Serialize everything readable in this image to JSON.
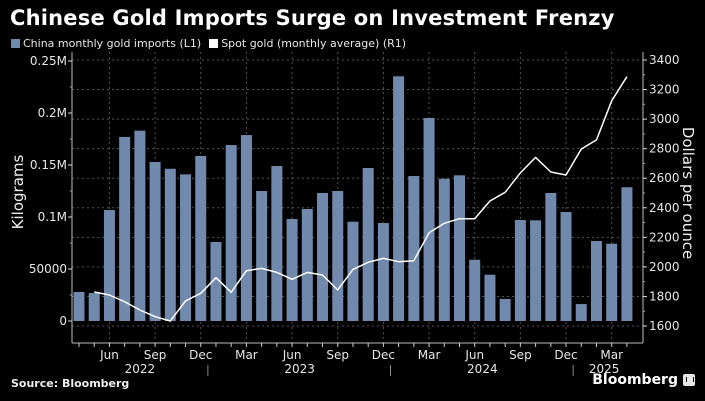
{
  "chart_data": {
    "type": "bar",
    "title": "Chinese Gold Imports Surge on Investment Frenzy",
    "source": "Source: Bloomberg",
    "brand": "Bloomberg",
    "legend_position": "top-left",
    "grid": true,
    "colors": {
      "bars": "#7189ad",
      "line": "#ffffff",
      "background": "#000000",
      "grid": "#555555"
    },
    "categories": [
      "Apr 2022",
      "May 2022",
      "Jun 2022",
      "Jul 2022",
      "Aug 2022",
      "Sep 2022",
      "Oct 2022",
      "Nov 2022",
      "Dec 2022",
      "Jan 2023",
      "Feb 2023",
      "Mar 2023",
      "Apr 2023",
      "May 2023",
      "Jun 2023",
      "Jul 2023",
      "Aug 2023",
      "Sep 2023",
      "Oct 2023",
      "Nov 2023",
      "Dec 2023",
      "Jan 2024",
      "Feb 2024",
      "Mar 2024",
      "Apr 2024",
      "May 2024",
      "Jun 2024",
      "Jul 2024",
      "Aug 2024",
      "Sep 2024",
      "Oct 2024",
      "Nov 2024",
      "Dec 2024",
      "Jan 2025",
      "Feb 2025",
      "Mar 2025",
      "Apr 2025"
    ],
    "series": [
      {
        "name": "China monthly gold imports (L1)",
        "type": "bar",
        "axis": "left",
        "values": [
          27900,
          26900,
          106700,
          177000,
          183000,
          152900,
          146400,
          141000,
          158700,
          76000,
          169200,
          178800,
          125000,
          149000,
          98100,
          107700,
          123100,
          125000,
          95500,
          147100,
          94200,
          235300,
          139400,
          195200,
          136800,
          140100,
          58900,
          44500,
          21200,
          97100,
          96800,
          123100,
          104800,
          16300,
          76900,
          74300,
          128600
        ]
      },
      {
        "name": "Spot gold (monthly average) (R1)",
        "type": "line",
        "axis": "right",
        "values": [
          null,
          1830,
          1810,
          1764,
          1708,
          1663,
          1634,
          1769,
          1821,
          1927,
          1828,
          1974,
          1990,
          1963,
          1916,
          1963,
          1945,
          1844,
          1983,
          2031,
          2058,
          2035,
          2042,
          2231,
          2295,
          2326,
          2326,
          2446,
          2505,
          2637,
          2741,
          2642,
          2622,
          2798,
          2859,
          3124,
          3287
        ]
      }
    ],
    "left_axis": {
      "label": "Kilograms",
      "ylim": [
        0,
        250000
      ],
      "ticks": [
        0,
        50000,
        100000,
        150000,
        200000,
        250000
      ],
      "tick_labels": [
        "0",
        "50000",
        "0.1M",
        "0.15M",
        "0.2M",
        "0.25M"
      ]
    },
    "right_axis": {
      "label": "Dollars per ounce",
      "ylim": [
        1600,
        3400
      ],
      "ticks": [
        1600,
        1800,
        2000,
        2200,
        2400,
        2600,
        2800,
        3000,
        3200,
        3400
      ],
      "tick_labels": [
        "1600",
        "1800",
        "2000",
        "2200",
        "2400",
        "2600",
        "2800",
        "3000",
        "3200",
        "3400"
      ]
    },
    "x_axis": {
      "month_labels": [
        {
          "index": 2,
          "label": "Jun"
        },
        {
          "index": 5,
          "label": "Sep"
        },
        {
          "index": 8,
          "label": "Dec"
        },
        {
          "index": 11,
          "label": "Mar"
        },
        {
          "index": 14,
          "label": "Jun"
        },
        {
          "index": 17,
          "label": "Sep"
        },
        {
          "index": 20,
          "label": "Dec"
        },
        {
          "index": 23,
          "label": "Mar"
        },
        {
          "index": 26,
          "label": "Jun"
        },
        {
          "index": 29,
          "label": "Sep"
        },
        {
          "index": 32,
          "label": "Dec"
        },
        {
          "index": 35,
          "label": "Mar"
        }
      ],
      "year_labels": [
        {
          "label": "2022",
          "from": 0,
          "to": 8
        },
        {
          "label": "2023",
          "from": 9,
          "to": 20
        },
        {
          "label": "2024",
          "from": 21,
          "to": 32
        },
        {
          "label": "2025",
          "from": 33,
          "to": 36
        }
      ]
    }
  }
}
